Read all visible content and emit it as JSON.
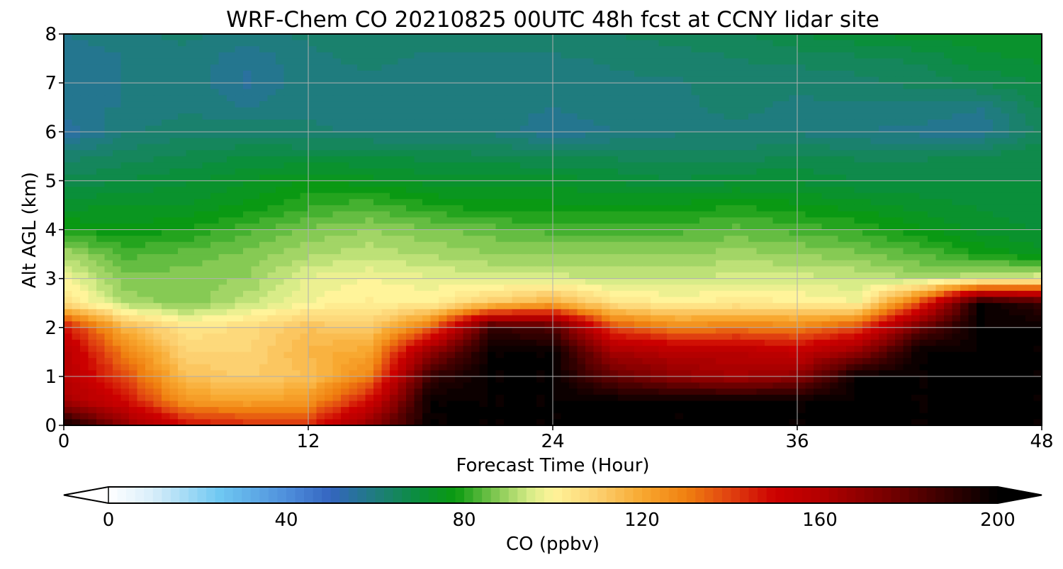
{
  "chart_data": {
    "type": "heatmap",
    "title": "WRF-Chem CO  20210825 00UTC 48h fcst at CCNY lidar site",
    "xlabel": "Forecast Time (Hour)",
    "ylabel": "Alt AGL (km)",
    "xlim": [
      0,
      48
    ],
    "ylim": [
      0,
      8
    ],
    "xticks": [
      0,
      12,
      24,
      36,
      48
    ],
    "yticks": [
      0,
      1,
      2,
      3,
      4,
      5,
      6,
      7,
      8
    ],
    "grid": true,
    "x": [
      0,
      3,
      6,
      9,
      12,
      15,
      18,
      21,
      24,
      27,
      30,
      33,
      36,
      39,
      42,
      45,
      48
    ],
    "y": [
      0,
      0.5,
      1,
      1.5,
      2,
      2.5,
      3,
      3.5,
      4,
      4.5,
      5,
      5.5,
      6,
      6.5,
      7,
      7.5,
      8
    ],
    "z": [
      [
        200,
        170,
        150,
        145,
        145,
        170,
        200,
        200,
        200,
        200,
        200,
        200,
        200,
        200,
        200,
        200,
        200
      ],
      [
        165,
        150,
        125,
        122,
        125,
        150,
        200,
        200,
        200,
        200,
        200,
        200,
        200,
        200,
        200,
        200,
        200
      ],
      [
        160,
        140,
        115,
        112,
        115,
        130,
        190,
        200,
        200,
        180,
        170,
        165,
        170,
        200,
        200,
        200,
        200
      ],
      [
        160,
        130,
        110,
        110,
        118,
        122,
        170,
        200,
        200,
        165,
        160,
        160,
        155,
        170,
        200,
        200,
        200
      ],
      [
        150,
        118,
        105,
        108,
        115,
        112,
        135,
        190,
        185,
        140,
        130,
        132,
        130,
        140,
        180,
        200,
        200
      ],
      [
        108,
        92,
        88,
        94,
        100,
        103,
        102,
        112,
        120,
        106,
        102,
        104,
        103,
        100,
        140,
        200,
        190
      ],
      [
        100,
        88,
        89,
        90,
        98,
        100,
        98,
        96,
        96,
        95,
        95,
        96,
        96,
        95,
        92,
        95,
        98
      ],
      [
        92,
        84,
        86,
        88,
        92,
        94,
        92,
        90,
        90,
        90,
        90,
        91,
        90,
        88,
        85,
        80,
        76
      ],
      [
        80,
        78,
        80,
        84,
        88,
        90,
        88,
        86,
        84,
        84,
        84,
        86,
        84,
        82,
        78,
        74,
        72
      ],
      [
        74,
        75,
        75,
        78,
        82,
        84,
        80,
        78,
        78,
        78,
        78,
        80,
        78,
        76,
        74,
        72,
        71
      ],
      [
        68,
        70,
        72,
        75,
        78,
        76,
        74,
        74,
        74,
        72,
        70,
        72,
        72,
        70,
        70,
        70,
        70
      ],
      [
        64,
        66,
        68,
        70,
        70,
        70,
        69,
        68,
        67,
        67,
        66,
        66,
        68,
        67,
        67,
        68,
        70
      ],
      [
        55,
        62,
        64,
        64,
        63,
        62,
        62,
        62,
        58,
        60,
        62,
        62,
        62,
        60,
        59,
        58,
        66
      ],
      [
        60,
        60,
        62,
        60,
        62,
        61,
        62,
        61,
        60,
        62,
        62,
        63,
        62,
        62,
        62,
        60,
        68
      ],
      [
        58,
        60,
        62,
        57,
        62,
        62,
        62,
        61,
        61,
        62,
        62,
        64,
        63,
        64,
        66,
        68,
        70
      ],
      [
        58,
        60,
        62,
        58,
        62,
        63,
        62,
        62,
        62,
        63,
        64,
        65,
        66,
        67,
        68,
        72,
        73
      ],
      [
        60,
        62,
        63,
        62,
        63,
        64,
        64,
        64,
        65,
        65,
        66,
        67,
        70,
        72,
        74,
        74,
        74
      ]
    ],
    "colorbar": {
      "label": "CO  (ppbv)",
      "min": 0,
      "max": 200,
      "ticks": [
        0,
        40,
        80,
        120,
        160,
        200
      ],
      "extend": "both",
      "colors": [
        {
          "v": 0,
          "c": "#ffffff"
        },
        {
          "v": 10,
          "c": "#d8eefa"
        },
        {
          "v": 25,
          "c": "#6fc8f2"
        },
        {
          "v": 40,
          "c": "#4f8fdc"
        },
        {
          "v": 50,
          "c": "#3465c0"
        },
        {
          "v": 60,
          "c": "#1f7c7e"
        },
        {
          "v": 70,
          "c": "#0a8f3a"
        },
        {
          "v": 78,
          "c": "#0a9a10"
        },
        {
          "v": 88,
          "c": "#8ccc58"
        },
        {
          "v": 95,
          "c": "#d8ec88"
        },
        {
          "v": 100,
          "c": "#fff49a"
        },
        {
          "v": 110,
          "c": "#fcd070"
        },
        {
          "v": 120,
          "c": "#f8a830"
        },
        {
          "v": 130,
          "c": "#f08010"
        },
        {
          "v": 140,
          "c": "#e04010"
        },
        {
          "v": 150,
          "c": "#cc0000"
        },
        {
          "v": 160,
          "c": "#b40000"
        },
        {
          "v": 175,
          "c": "#780000"
        },
        {
          "v": 190,
          "c": "#300000"
        },
        {
          "v": 200,
          "c": "#000000"
        }
      ]
    }
  }
}
